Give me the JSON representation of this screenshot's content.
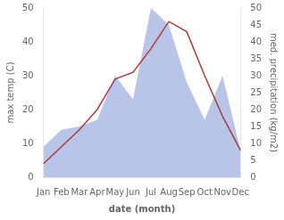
{
  "chart_data": {
    "type": "line",
    "xlabel": "date (month)",
    "ylabel": "max temp (C)",
    "y2label": "med. precipitation (kg/m2)",
    "categories": [
      "Jan",
      "Feb",
      "Mar",
      "Apr",
      "May",
      "Jun",
      "Jul",
      "Aug",
      "Sep",
      "Oct",
      "Nov",
      "Dec"
    ],
    "series": [
      {
        "type": "area",
        "axis": "y2",
        "color": "#b8c4e8",
        "values": [
          9,
          14,
          15,
          17,
          30,
          23,
          50,
          45,
          28,
          17,
          30,
          8
        ]
      },
      {
        "type": "line",
        "color": "#b03a3a",
        "values": [
          4,
          9,
          14,
          20,
          29,
          31,
          38,
          46,
          43,
          30,
          18,
          8
        ]
      }
    ],
    "ylim": [
      0,
      50
    ],
    "yticks": [
      0,
      10,
      20,
      30,
      40,
      50
    ],
    "y2lim": [
      0,
      50
    ],
    "y2ticks": [
      0,
      5,
      10,
      15,
      20,
      25,
      30,
      35,
      40,
      45,
      50
    ],
    "grid": false,
    "legend": false
  }
}
